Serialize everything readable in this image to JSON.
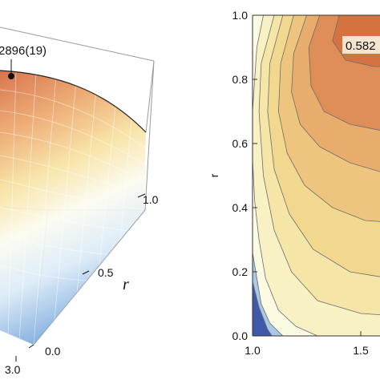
{
  "chart_data": [
    {
      "type": "surface",
      "axes": {
        "r": {
          "label": "r",
          "ticks": [
            "0.0",
            "0.5",
            "1.0"
          ]
        },
        "x": {
          "ticks": [
            "3.0"
          ]
        }
      },
      "annotation": {
        "text": "2896(19)"
      },
      "colors": {
        "high": "#d0653a",
        "mid": "#f6e7a6",
        "low": "#5b8fd0"
      }
    },
    {
      "type": "contour",
      "x_ticks": [
        "1.0",
        "1.5"
      ],
      "y_ticks": [
        "0.0",
        "0.2",
        "0.4",
        "0.6",
        "0.8",
        "1.0"
      ],
      "xlim": [
        1.0,
        1.72
      ],
      "ylim": [
        0.0,
        1.0
      ],
      "ylabel": "r",
      "annotation": {
        "text": "0.582",
        "x": 1.42,
        "y": 0.95
      },
      "levels": [
        {
          "fill": "#fbfbe3",
          "outline": [
            [
              1.0,
              0.0
            ],
            [
              1.72,
              0.0
            ],
            [
              1.72,
              1.0
            ],
            [
              1.0,
              1.0
            ]
          ]
        },
        {
          "fill": "#f8f1c4",
          "outline": [
            [
              1.05,
              1.0
            ],
            [
              1.02,
              0.9
            ],
            [
              1.0,
              0.7
            ],
            [
              1.0,
              0.55
            ],
            [
              1.01,
              0.42
            ],
            [
              1.03,
              0.3
            ],
            [
              1.06,
              0.18
            ],
            [
              1.12,
              0.08
            ],
            [
              1.2,
              0.03
            ],
            [
              1.3,
              0.0
            ],
            [
              1.72,
              0.0
            ],
            [
              1.72,
              1.0
            ]
          ]
        },
        {
          "fill": "#f5e5a6",
          "outline": [
            [
              1.1,
              1.0
            ],
            [
              1.04,
              0.85
            ],
            [
              1.03,
              0.7
            ],
            [
              1.05,
              0.5
            ],
            [
              1.1,
              0.33
            ],
            [
              1.18,
              0.2
            ],
            [
              1.3,
              0.11
            ],
            [
              1.5,
              0.07
            ],
            [
              1.72,
              0.06
            ],
            [
              1.72,
              1.0
            ]
          ]
        },
        {
          "fill": "#f2d78f",
          "outline": [
            [
              1.14,
              1.0
            ],
            [
              1.08,
              0.85
            ],
            [
              1.07,
              0.7
            ],
            [
              1.1,
              0.52
            ],
            [
              1.17,
              0.38
            ],
            [
              1.28,
              0.27
            ],
            [
              1.45,
              0.2
            ],
            [
              1.72,
              0.17
            ],
            [
              1.72,
              1.0
            ]
          ]
        },
        {
          "fill": "#eec57e",
          "outline": [
            [
              1.19,
              1.0
            ],
            [
              1.13,
              0.85
            ],
            [
              1.12,
              0.7
            ],
            [
              1.16,
              0.57
            ],
            [
              1.24,
              0.47
            ],
            [
              1.37,
              0.4
            ],
            [
              1.52,
              0.36
            ],
            [
              1.72,
              0.35
            ],
            [
              1.72,
              1.0
            ]
          ]
        },
        {
          "fill": "#e8ac6c",
          "outline": [
            [
              1.25,
              1.0
            ],
            [
              1.19,
              0.88
            ],
            [
              1.18,
              0.76
            ],
            [
              1.22,
              0.66
            ],
            [
              1.31,
              0.59
            ],
            [
              1.45,
              0.54
            ],
            [
              1.6,
              0.51
            ],
            [
              1.72,
              0.5
            ],
            [
              1.72,
              1.0
            ]
          ]
        },
        {
          "fill": "#df8d56",
          "outline": [
            [
              1.31,
              1.0
            ],
            [
              1.26,
              0.9
            ],
            [
              1.27,
              0.78
            ],
            [
              1.33,
              0.7
            ],
            [
              1.45,
              0.66
            ],
            [
              1.6,
              0.64
            ],
            [
              1.72,
              0.64
            ],
            [
              1.72,
              1.0
            ]
          ]
        },
        {
          "fill": "#d4733f",
          "outline": [
            [
              1.4,
              1.0
            ],
            [
              1.37,
              0.92
            ],
            [
              1.43,
              0.86
            ],
            [
              1.56,
              0.84
            ],
            [
              1.72,
              0.84
            ],
            [
              1.72,
              1.0
            ]
          ]
        },
        {
          "fill": "#a9c8e6",
          "outline": [
            [
              1.0,
              0.0
            ],
            [
              1.0,
              0.26
            ],
            [
              1.02,
              0.18
            ],
            [
              1.04,
              0.1
            ],
            [
              1.08,
              0.04
            ],
            [
              1.14,
              0.0
            ]
          ]
        },
        {
          "fill": "#3f59a8",
          "outline": [
            [
              1.0,
              0.0
            ],
            [
              1.0,
              0.17
            ],
            [
              1.03,
              0.09
            ],
            [
              1.07,
              0.02
            ],
            [
              1.09,
              0.0
            ]
          ]
        }
      ]
    }
  ]
}
